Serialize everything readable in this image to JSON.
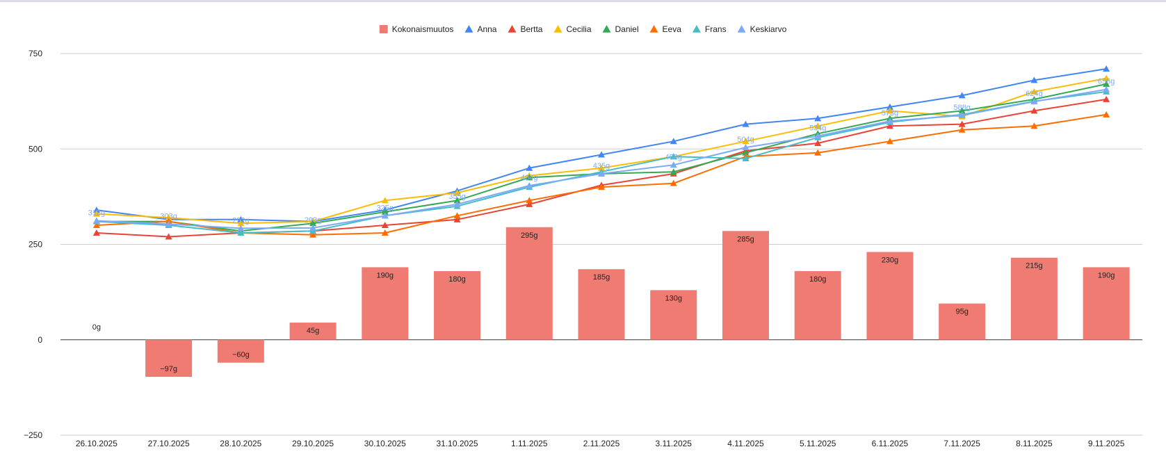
{
  "chart_data": {
    "type": "bar",
    "categories": [
      "26.10.2025",
      "27.10.2025",
      "28.10.2025",
      "29.10.2025",
      "30.10.2025",
      "31.10.2025",
      "1.11.2025",
      "2.11.2025",
      "3.11.2025",
      "4.11.2025",
      "5.11.2025",
      "6.11.2025",
      "7.11.2025",
      "8.11.2025",
      "9.11.2025"
    ],
    "ylim": [
      -250,
      750
    ],
    "y_ticks": [
      "750",
      "500",
      "250",
      "0",
      "−250"
    ],
    "grid": true,
    "legend_position": "top",
    "bar_series": {
      "name": "Kokonaismuutos",
      "color": "#f07b72",
      "values": [
        0,
        -97,
        -60,
        45,
        190,
        180,
        295,
        185,
        130,
        285,
        180,
        230,
        95,
        215,
        190
      ],
      "labels": [
        "0g",
        "−97g",
        "−60g",
        "45g",
        "190g",
        "180g",
        "295g",
        "185g",
        "130g",
        "285g",
        "180g",
        "230g",
        "95g",
        "215g",
        "190g"
      ]
    },
    "line_series": [
      {
        "name": "Anna",
        "color": "#4285f4",
        "values": [
          340,
          315,
          315,
          310,
          340,
          390,
          450,
          485,
          520,
          565,
          580,
          610,
          640,
          680,
          710
        ]
      },
      {
        "name": "Bertta",
        "color": "#ea4335",
        "values": [
          280,
          270,
          280,
          285,
          300,
          315,
          355,
          405,
          435,
          495,
          515,
          560,
          565,
          600,
          630
        ]
      },
      {
        "name": "Cecilia",
        "color": "#fbbc04",
        "values": [
          330,
          320,
          305,
          310,
          365,
          385,
          430,
          450,
          480,
          520,
          560,
          600,
          585,
          650,
          685
        ]
      },
      {
        "name": "Daniel",
        "color": "#34a853",
        "values": [
          310,
          310,
          285,
          305,
          335,
          365,
          425,
          435,
          440,
          490,
          540,
          580,
          600,
          630,
          670
        ]
      },
      {
        "name": "Eeva",
        "color": "#ff6d01",
        "values": [
          300,
          310,
          280,
          275,
          280,
          325,
          365,
          400,
          410,
          480,
          490,
          520,
          550,
          560,
          590
        ]
      },
      {
        "name": "Frans",
        "color": "#46bdc6",
        "values": [
          310,
          300,
          280,
          285,
          325,
          350,
          400,
          440,
          480,
          475,
          530,
          570,
          590,
          625,
          650
        ]
      },
      {
        "name": "Keskiarvo",
        "color": "#7baaf7",
        "values": [
          312,
          303,
          292,
          293,
          325,
          355,
          404,
          435,
          458,
          504,
          534,
          573,
          588,
          624,
          656
        ],
        "labels": [
          "312g",
          "303g",
          "292g",
          "293g",
          "325g",
          "355g",
          "404g",
          "435g",
          "458g",
          "504g",
          "534g",
          "573g",
          "588g",
          "624g",
          "656g"
        ]
      }
    ]
  }
}
